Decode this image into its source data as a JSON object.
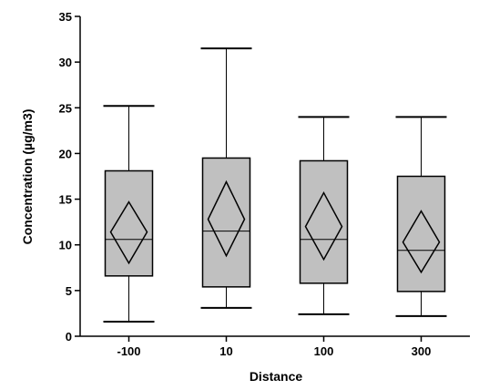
{
  "chart_data": {
    "type": "box",
    "xlabel": "Distance",
    "ylabel": "Concentration (µg/m3)",
    "ylim": [
      0,
      35
    ],
    "yticks": [
      0,
      5,
      10,
      15,
      20,
      25,
      30,
      35
    ],
    "categories": [
      "-100",
      "10",
      "100",
      "300"
    ],
    "boxes": [
      {
        "category": "-100",
        "min": 1.6,
        "q1": 6.6,
        "median": 10.6,
        "q3": 18.1,
        "max": 25.2,
        "mean": 11.4,
        "ci_low": 8.0,
        "ci_high": 14.7
      },
      {
        "category": "10",
        "min": 3.1,
        "q1": 5.4,
        "median": 11.5,
        "q3": 19.5,
        "max": 31.5,
        "mean": 12.8,
        "ci_low": 8.8,
        "ci_high": 16.9
      },
      {
        "category": "100",
        "min": 2.4,
        "q1": 5.8,
        "median": 10.6,
        "q3": 19.2,
        "max": 24.0,
        "mean": 12.0,
        "ci_low": 8.4,
        "ci_high": 15.7
      },
      {
        "category": "300",
        "min": 2.2,
        "q1": 4.9,
        "median": 9.4,
        "q3": 17.5,
        "max": 24.0,
        "mean": 10.3,
        "ci_low": 7.0,
        "ci_high": 13.7
      }
    ],
    "grid": false,
    "box_fill": "#c0c0c0",
    "line_color": "#000000"
  }
}
